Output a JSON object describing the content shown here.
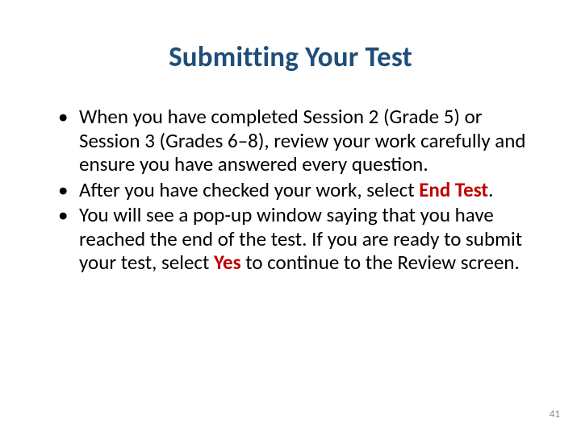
{
  "title": "Submitting Your Test",
  "title_color": "#1f4e79",
  "title_fontsize": 35,
  "body_color": "#000000",
  "body_fontsize": 25,
  "emphasis_color": "#c00000",
  "bullets": [
    {
      "parts": [
        {
          "text": "When you have completed Session 2 (Grade 5) or Session 3 (Grades 6–8), review your work carefully and ensure you have answered every question.",
          "em": false
        }
      ]
    },
    {
      "parts": [
        {
          "text": "After you have checked your work, select ",
          "em": false
        },
        {
          "text": "End Test",
          "em": true
        },
        {
          "text": ".",
          "em": false
        }
      ]
    },
    {
      "parts": [
        {
          "text": "You will see a pop-up window saying that you have reached the end of the test. If you are ready to submit your test, select ",
          "em": false
        },
        {
          "text": "Yes",
          "em": true
        },
        {
          "text": " to continue to the Review screen.",
          "em": false
        }
      ]
    }
  ],
  "page_number": "41",
  "page_number_color": "#8a8a8a",
  "page_number_fontsize": 13
}
